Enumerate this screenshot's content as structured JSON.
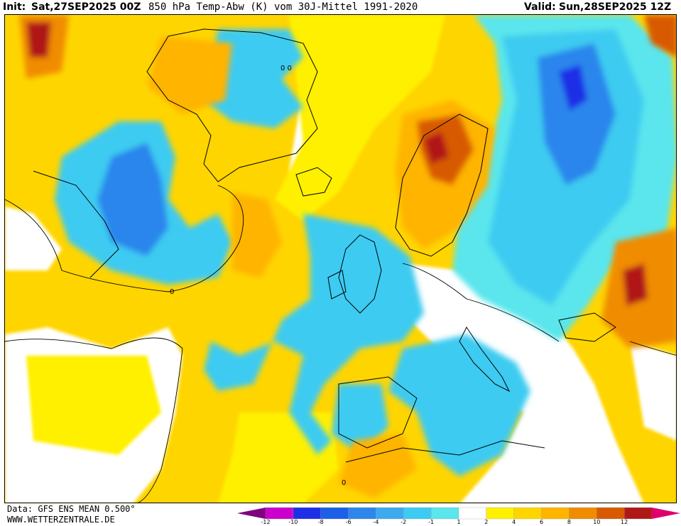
{
  "header": {
    "init_label": "Init:",
    "init_value": "Sat,27SEP2025 00Z",
    "title": "850 hPa Temp-Abw (K) vom 30J-Mittel 1991-2020",
    "valid_label": "Valid:",
    "valid_value": "Sun,28SEP2025 12Z"
  },
  "footer": {
    "data_source": "Data: GFS ENS MEAN 0.500°",
    "website": "WWW.WETTERZENTRALE.DE"
  },
  "colorbar": {
    "ticks": [
      "-12",
      "-10",
      "-8",
      "-6",
      "-4",
      "-2",
      "-1",
      "1",
      "2",
      "4",
      "6",
      "8",
      "10",
      "12"
    ],
    "colors": [
      "#800080",
      "#cc00cc",
      "#1e2fe6",
      "#1c5fe8",
      "#2c86ec",
      "#3daaf0",
      "#3ecbf1",
      "#5ae6ec",
      "#ffffff",
      "#fff000",
      "#ffd500",
      "#ffb400",
      "#f08c00",
      "#d85a00",
      "#b01818",
      "#e0006c"
    ]
  },
  "map_labels": {
    "zero": "0",
    "zero_zero": "0 0"
  }
}
